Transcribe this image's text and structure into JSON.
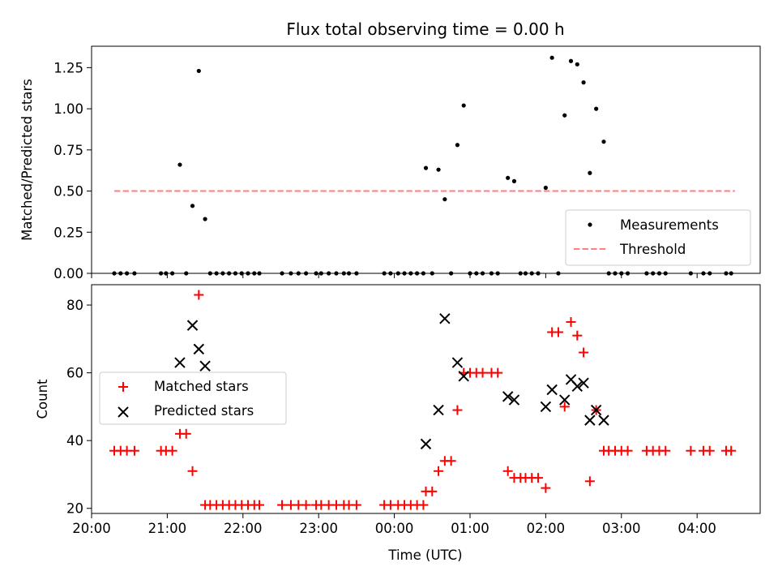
{
  "chart_data": [
    {
      "type": "scatter",
      "title": "Flux total observing time = 0.00 h",
      "xlabel": "",
      "ylabel": "Matched/Predicted stars",
      "xlim": [
        "20:00",
        "04:50"
      ],
      "ylim": [
        0,
        1.38
      ],
      "yticks": [
        0.0,
        0.25,
        0.5,
        0.75,
        1.0,
        1.25
      ],
      "ytick_labels": [
        "0.00",
        "0.25",
        "0.50",
        "0.75",
        "1.00",
        "1.25"
      ],
      "legend": {
        "position": "lower right"
      },
      "series": [
        {
          "name": "Measurements",
          "marker": "dot",
          "color": "#000000",
          "points": [
            [
              "20:18",
              0.0
            ],
            [
              "20:23",
              0.0
            ],
            [
              "20:28",
              0.0
            ],
            [
              "20:34",
              0.0
            ],
            [
              "20:55",
              0.0
            ],
            [
              "20:59",
              0.0
            ],
            [
              "21:04",
              0.0
            ],
            [
              "21:10",
              0.66
            ],
            [
              "21:15",
              0.0
            ],
            [
              "21:20",
              0.41
            ],
            [
              "21:25",
              1.23
            ],
            [
              "21:30",
              0.33
            ],
            [
              "21:34",
              0.0
            ],
            [
              "21:39",
              0.0
            ],
            [
              "21:44",
              0.0
            ],
            [
              "21:49",
              0.0
            ],
            [
              "21:54",
              0.0
            ],
            [
              "21:59",
              0.0
            ],
            [
              "22:04",
              0.0
            ],
            [
              "22:09",
              0.0
            ],
            [
              "22:13",
              0.0
            ],
            [
              "22:31",
              0.0
            ],
            [
              "22:38",
              0.0
            ],
            [
              "22:44",
              0.0
            ],
            [
              "22:50",
              0.0
            ],
            [
              "22:58",
              0.0
            ],
            [
              "23:02",
              0.0
            ],
            [
              "23:08",
              0.0
            ],
            [
              "23:14",
              0.0
            ],
            [
              "23:20",
              0.0
            ],
            [
              "23:24",
              0.0
            ],
            [
              "23:30",
              0.0
            ],
            [
              "23:52",
              0.0
            ],
            [
              "23:57",
              0.0
            ],
            [
              "00:03",
              0.0
            ],
            [
              "00:08",
              0.0
            ],
            [
              "00:13",
              0.0
            ],
            [
              "00:18",
              0.0
            ],
            [
              "00:23",
              0.0
            ],
            [
              "00:25",
              0.64
            ],
            [
              "00:30",
              0.0
            ],
            [
              "00:35",
              0.63
            ],
            [
              "00:40",
              0.45
            ],
            [
              "00:45",
              0.0
            ],
            [
              "00:50",
              0.78
            ],
            [
              "00:55",
              1.02
            ],
            [
              "01:00",
              0.0
            ],
            [
              "01:05",
              0.0
            ],
            [
              "01:10",
              0.0
            ],
            [
              "01:17",
              0.0
            ],
            [
              "01:22",
              0.0
            ],
            [
              "01:30",
              0.58
            ],
            [
              "01:35",
              0.56
            ],
            [
              "01:40",
              0.0
            ],
            [
              "01:44",
              0.0
            ],
            [
              "01:49",
              0.0
            ],
            [
              "01:54",
              0.0
            ],
            [
              "02:00",
              0.52
            ],
            [
              "02:05",
              1.31
            ],
            [
              "02:10",
              0.0
            ],
            [
              "02:15",
              0.96
            ],
            [
              "02:20",
              1.29
            ],
            [
              "02:25",
              1.27
            ],
            [
              "02:30",
              1.16
            ],
            [
              "02:35",
              0.61
            ],
            [
              "02:40",
              1.0
            ],
            [
              "02:46",
              0.8
            ],
            [
              "02:50",
              0.0
            ],
            [
              "02:55",
              0.0
            ],
            [
              "03:00",
              0.0
            ],
            [
              "03:05",
              0.0
            ],
            [
              "03:20",
              0.0
            ],
            [
              "03:25",
              0.0
            ],
            [
              "03:30",
              0.0
            ],
            [
              "03:35",
              0.0
            ],
            [
              "03:55",
              0.0
            ],
            [
              "04:05",
              0.0
            ],
            [
              "04:10",
              0.0
            ],
            [
              "04:23",
              0.0
            ],
            [
              "04:27",
              0.0
            ]
          ]
        },
        {
          "name": "Threshold",
          "line": "dashed",
          "color": "#ff7f7f",
          "points": [
            [
              "20:18",
              0.5
            ],
            [
              "04:30",
              0.5
            ]
          ]
        }
      ]
    },
    {
      "type": "scatter",
      "title": "",
      "xlabel": "Time (UTC)",
      "ylabel": "Count",
      "xlim": [
        "20:00",
        "04:50"
      ],
      "ylim": [
        18.5,
        86
      ],
      "xticks": [
        "20:00",
        "21:00",
        "22:00",
        "23:00",
        "00:00",
        "01:00",
        "02:00",
        "03:00",
        "04:00"
      ],
      "yticks": [
        20,
        40,
        60,
        80
      ],
      "legend": {
        "position": "center left"
      },
      "series": [
        {
          "name": "Matched stars",
          "marker": "plus",
          "color": "#ff0000",
          "points": [
            [
              "20:18",
              37
            ],
            [
              "20:23",
              37
            ],
            [
              "20:28",
              37
            ],
            [
              "20:34",
              37
            ],
            [
              "20:55",
              37
            ],
            [
              "20:59",
              37
            ],
            [
              "21:04",
              37
            ],
            [
              "21:10",
              42
            ],
            [
              "21:15",
              42
            ],
            [
              "21:20",
              31
            ],
            [
              "21:25",
              83
            ],
            [
              "21:30",
              21
            ],
            [
              "21:34",
              21
            ],
            [
              "21:39",
              21
            ],
            [
              "21:44",
              21
            ],
            [
              "21:49",
              21
            ],
            [
              "21:54",
              21
            ],
            [
              "21:59",
              21
            ],
            [
              "22:04",
              21
            ],
            [
              "22:09",
              21
            ],
            [
              "22:13",
              21
            ],
            [
              "22:31",
              21
            ],
            [
              "22:38",
              21
            ],
            [
              "22:44",
              21
            ],
            [
              "22:50",
              21
            ],
            [
              "22:58",
              21
            ],
            [
              "23:02",
              21
            ],
            [
              "23:08",
              21
            ],
            [
              "23:14",
              21
            ],
            [
              "23:20",
              21
            ],
            [
              "23:24",
              21
            ],
            [
              "23:30",
              21
            ],
            [
              "23:52",
              21
            ],
            [
              "23:57",
              21
            ],
            [
              "00:03",
              21
            ],
            [
              "00:08",
              21
            ],
            [
              "00:13",
              21
            ],
            [
              "00:18",
              21
            ],
            [
              "00:23",
              21
            ],
            [
              "00:25",
              25
            ],
            [
              "00:30",
              25
            ],
            [
              "00:35",
              31
            ],
            [
              "00:40",
              34
            ],
            [
              "00:45",
              34
            ],
            [
              "00:50",
              49
            ],
            [
              "00:55",
              60
            ],
            [
              "01:00",
              60
            ],
            [
              "01:05",
              60
            ],
            [
              "01:10",
              60
            ],
            [
              "01:17",
              60
            ],
            [
              "01:22",
              60
            ],
            [
              "01:30",
              31
            ],
            [
              "01:35",
              29
            ],
            [
              "01:40",
              29
            ],
            [
              "01:44",
              29
            ],
            [
              "01:49",
              29
            ],
            [
              "01:54",
              29
            ],
            [
              "02:00",
              26
            ],
            [
              "02:05",
              72
            ],
            [
              "02:10",
              72
            ],
            [
              "02:15",
              50
            ],
            [
              "02:20",
              75
            ],
            [
              "02:25",
              71
            ],
            [
              "02:30",
              66
            ],
            [
              "02:35",
              28
            ],
            [
              "02:40",
              49
            ],
            [
              "02:46",
              37
            ],
            [
              "02:50",
              37
            ],
            [
              "02:55",
              37
            ],
            [
              "03:00",
              37
            ],
            [
              "03:05",
              37
            ],
            [
              "03:20",
              37
            ],
            [
              "03:25",
              37
            ],
            [
              "03:30",
              37
            ],
            [
              "03:35",
              37
            ],
            [
              "03:55",
              37
            ],
            [
              "04:05",
              37
            ],
            [
              "04:10",
              37
            ],
            [
              "04:23",
              37
            ],
            [
              "04:27",
              37
            ]
          ]
        },
        {
          "name": "Predicted stars",
          "marker": "x",
          "color": "#000000",
          "points": [
            [
              "21:10",
              63
            ],
            [
              "21:20",
              74
            ],
            [
              "21:25",
              67
            ],
            [
              "21:30",
              62
            ],
            [
              "00:25",
              39
            ],
            [
              "00:35",
              49
            ],
            [
              "00:40",
              76
            ],
            [
              "00:50",
              63
            ],
            [
              "00:55",
              59
            ],
            [
              "01:30",
              53
            ],
            [
              "01:35",
              52
            ],
            [
              "02:00",
              50
            ],
            [
              "02:05",
              55
            ],
            [
              "02:15",
              52
            ],
            [
              "02:20",
              58
            ],
            [
              "02:25",
              56
            ],
            [
              "02:30",
              57
            ],
            [
              "02:35",
              46
            ],
            [
              "02:40",
              49
            ],
            [
              "02:46",
              46
            ]
          ]
        }
      ]
    }
  ]
}
